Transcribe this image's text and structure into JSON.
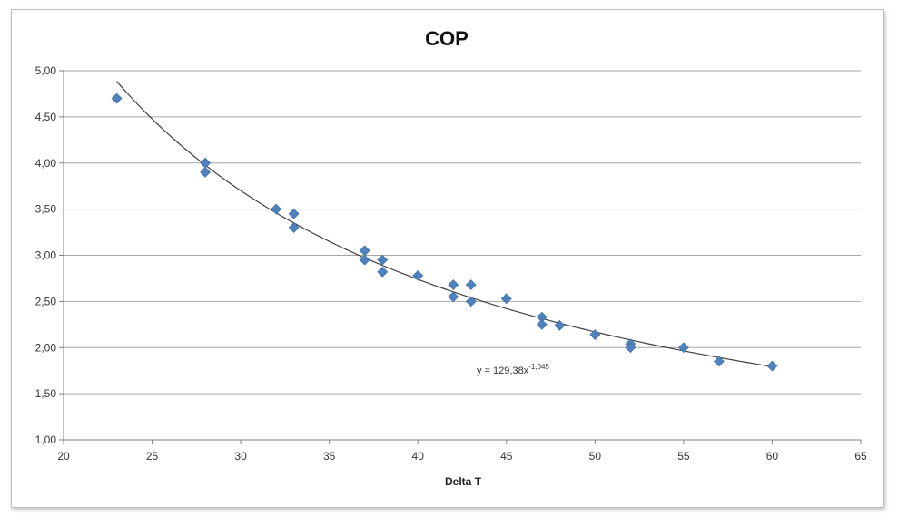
{
  "chart_data": {
    "type": "scatter",
    "title": "COP",
    "xlabel": "Delta T",
    "ylabel": "",
    "xlim": [
      20,
      65
    ],
    "ylim": [
      1.0,
      5.0
    ],
    "x_ticks": [
      "20",
      "25",
      "30",
      "35",
      "40",
      "45",
      "50",
      "55",
      "60",
      "65"
    ],
    "y_ticks": [
      "1,00",
      "1,50",
      "2,00",
      "2,50",
      "3,00",
      "3,50",
      "4,00",
      "4,50",
      "5,00"
    ],
    "grid": "horizontal",
    "marker": "diamond",
    "marker_color": "#4F81BD",
    "trendline_color": "#404040",
    "series": [
      {
        "points": [
          {
            "x": 23,
            "y": 4.7
          },
          {
            "x": 28,
            "y": 4.0
          },
          {
            "x": 28,
            "y": 3.9
          },
          {
            "x": 32,
            "y": 3.5
          },
          {
            "x": 33,
            "y": 3.45
          },
          {
            "x": 33,
            "y": 3.3
          },
          {
            "x": 37,
            "y": 3.05
          },
          {
            "x": 37,
            "y": 2.95
          },
          {
            "x": 38,
            "y": 2.95
          },
          {
            "x": 38,
            "y": 2.82
          },
          {
            "x": 40,
            "y": 2.78
          },
          {
            "x": 42,
            "y": 2.68
          },
          {
            "x": 42,
            "y": 2.55
          },
          {
            "x": 43,
            "y": 2.68
          },
          {
            "x": 43,
            "y": 2.5
          },
          {
            "x": 45,
            "y": 2.53
          },
          {
            "x": 47,
            "y": 2.33
          },
          {
            "x": 47,
            "y": 2.25
          },
          {
            "x": 48,
            "y": 2.24
          },
          {
            "x": 50,
            "y": 2.14
          },
          {
            "x": 52,
            "y": 2.04
          },
          {
            "x": 52,
            "y": 2.0
          },
          {
            "x": 55,
            "y": 2.0
          },
          {
            "x": 57,
            "y": 1.85
          },
          {
            "x": 60,
            "y": 1.8
          }
        ]
      }
    ],
    "trendline": {
      "type": "power",
      "a": 129.38,
      "b": -1.045,
      "x_range": [
        23,
        60
      ],
      "equation_main": "y = 129,38x",
      "equation_exp": "-1,045"
    }
  }
}
